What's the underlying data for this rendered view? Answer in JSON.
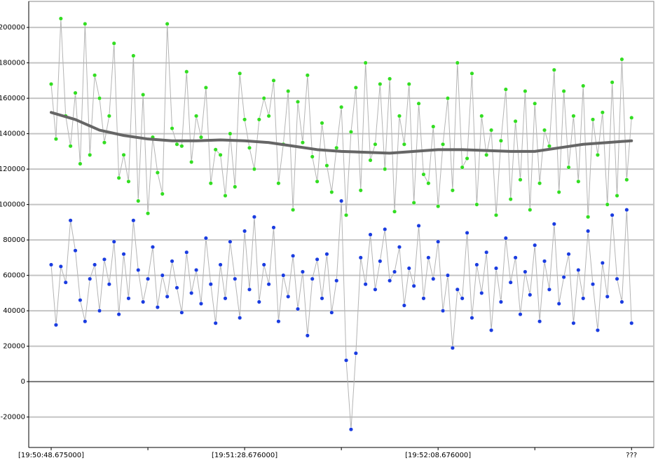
{
  "chart_data": {
    "type": "scatter",
    "x": [
      0,
      1,
      2,
      3,
      4,
      5,
      6,
      7,
      8,
      9,
      10,
      11,
      12,
      13,
      14,
      15,
      16,
      17,
      18,
      19,
      20,
      21,
      22,
      23,
      24,
      25,
      26,
      27,
      28,
      29,
      30,
      31,
      32,
      33,
      34,
      35,
      36,
      37,
      38,
      39,
      40,
      41,
      42,
      43,
      44,
      45,
      46,
      47,
      48,
      49,
      50,
      51,
      52,
      53,
      54,
      55,
      56,
      57,
      58,
      59,
      60,
      61,
      62,
      63,
      64,
      65,
      66,
      67,
      68,
      69,
      70,
      71,
      72,
      73,
      74,
      75,
      76,
      77,
      78,
      79,
      80,
      81,
      82,
      83,
      84,
      85,
      86,
      87,
      88,
      89,
      90,
      91,
      92,
      93,
      94,
      95,
      96,
      97,
      98,
      99,
      100,
      101,
      102,
      103,
      104,
      105,
      106,
      107,
      108,
      109,
      110,
      111,
      112,
      113,
      114,
      115,
      116,
      117,
      118,
      119,
      120
    ],
    "series": [
      {
        "style": "points",
        "color": "#33dd22",
        "line_color": "#b4b4b4",
        "values": [
          168000,
          137000,
          205000,
          150000,
          133000,
          163000,
          123000,
          202000,
          128000,
          173000,
          160000,
          135000,
          150000,
          191000,
          115000,
          128000,
          113000,
          184000,
          102000,
          162000,
          95000,
          138000,
          118000,
          106000,
          202000,
          143000,
          134000,
          133000,
          175000,
          124000,
          150000,
          138000,
          166000,
          112000,
          131000,
          128000,
          105000,
          140000,
          110000,
          174000,
          148000,
          132000,
          120000,
          148000,
          160000,
          150000,
          170000,
          112000,
          134000,
          164000,
          97000,
          158000,
          135000,
          173000,
          127000,
          113000,
          146000,
          122000,
          107000,
          132000,
          155000,
          94000,
          141000,
          166000,
          108000,
          180000,
          125000,
          134000,
          168000,
          120000,
          171000,
          96000,
          150000,
          134000,
          168000,
          101000,
          157000,
          117000,
          112000,
          144000,
          99000,
          134000,
          160000,
          108000,
          180000,
          121000,
          126000,
          174000,
          100000,
          150000,
          128000,
          142000,
          94000,
          136000,
          165000,
          103000,
          147000,
          114000,
          164000,
          97000,
          157000,
          112000,
          142000,
          133000,
          176000,
          107000,
          164000,
          121000,
          150000,
          113000,
          167000,
          93000,
          148000,
          128000,
          152000,
          100000,
          169000,
          105000,
          182000,
          114000,
          149000
        ]
      },
      {
        "style": "points",
        "color": "#1a3ce0",
        "line_color": "#b4b4b4",
        "values": [
          66000,
          32000,
          65000,
          56000,
          91000,
          74000,
          46000,
          34000,
          58000,
          66000,
          40000,
          69000,
          55000,
          79000,
          38000,
          72000,
          47000,
          91000,
          63000,
          45000,
          58000,
          76000,
          42000,
          60000,
          48000,
          68000,
          53000,
          39000,
          73000,
          50000,
          63000,
          44000,
          81000,
          55000,
          33000,
          66000,
          47000,
          79000,
          58000,
          36000,
          85000,
          52000,
          93000,
          45000,
          66000,
          55000,
          87000,
          34000,
          60000,
          48000,
          71000,
          41000,
          62000,
          26000,
          58000,
          69000,
          47000,
          72000,
          39000,
          57000,
          102000,
          12000,
          -27000,
          16000,
          70000,
          55000,
          83000,
          52000,
          68000,
          86000,
          57000,
          62000,
          76000,
          43000,
          64000,
          54000,
          88000,
          47000,
          70000,
          58000,
          79000,
          40000,
          60000,
          19000,
          52000,
          47000,
          84000,
          36000,
          66000,
          50000,
          73000,
          29000,
          64000,
          45000,
          81000,
          56000,
          70000,
          38000,
          62000,
          49000,
          77000,
          34000,
          68000,
          52000,
          89000,
          44000,
          59000,
          72000,
          33000,
          63000,
          47000,
          85000,
          55000,
          29000,
          67000,
          48000,
          94000,
          58000,
          45000,
          97000,
          33000
        ]
      },
      {
        "style": "line",
        "color": "#666666",
        "x": [
          0,
          5,
          10,
          15,
          20,
          25,
          30,
          35,
          40,
          45,
          50,
          55,
          60,
          65,
          70,
          75,
          80,
          85,
          90,
          95,
          100,
          105,
          110,
          115,
          120
        ],
        "values": [
          152000,
          148000,
          142000,
          139000,
          137000,
          136000,
          136000,
          136500,
          136000,
          135000,
          133000,
          131000,
          130000,
          129500,
          129000,
          130000,
          131000,
          131000,
          130500,
          130000,
          130000,
          132000,
          134000,
          135000,
          136000
        ]
      }
    ],
    "xlim": [
      -4.64,
      124.6
    ],
    "xticks": [
      {
        "value": 0,
        "label": "[19:50:48.675000]"
      },
      {
        "value": 20,
        "label": null
      },
      {
        "value": 40,
        "label": "[19:51:28.676000]"
      },
      {
        "value": 60,
        "label": null
      },
      {
        "value": 80,
        "label": "[19:52:08.676000]"
      },
      {
        "value": 100,
        "label": null
      },
      {
        "value": 120,
        "label": "???"
      }
    ],
    "ylim": [
      -37200,
      214700
    ],
    "yticks": [
      -20000,
      0,
      20000,
      40000,
      60000,
      80000,
      100000,
      120000,
      140000,
      160000,
      180000,
      200000
    ],
    "grid": true
  }
}
